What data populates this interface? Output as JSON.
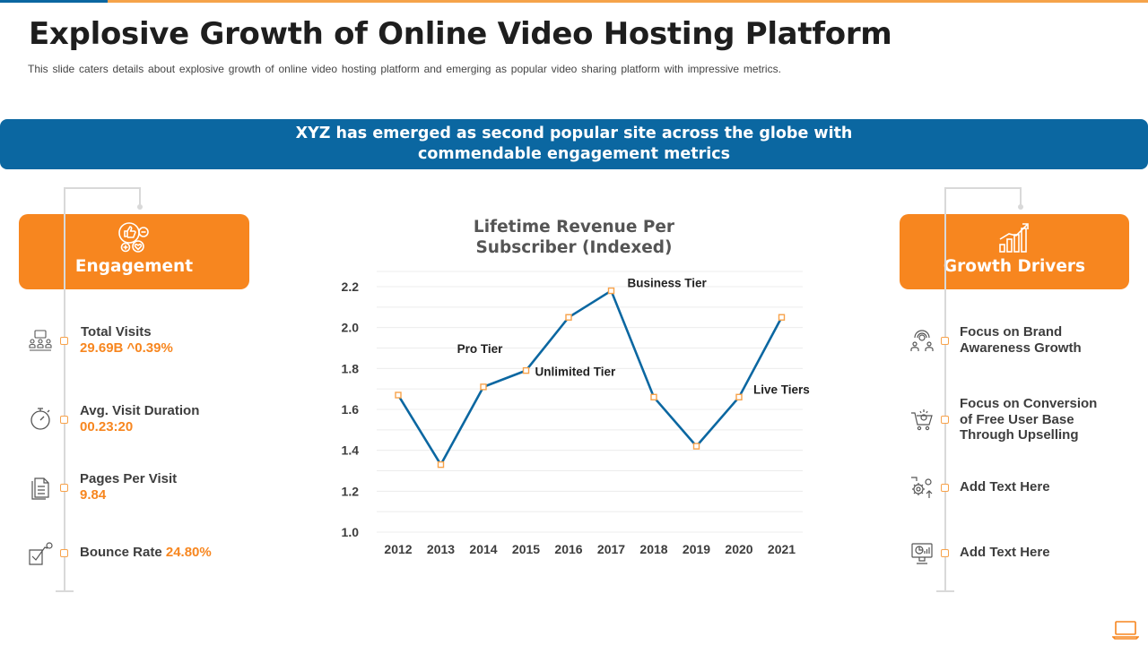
{
  "header": {
    "title": "Explosive Growth of Online Video Hosting Platform",
    "subtitle": "This slide caters details about explosive growth of online video hosting platform and emerging as popular video sharing platform with impressive metrics."
  },
  "banner": {
    "text": "XYZ has emerged as second popular site across the globe with commendable engagement metrics"
  },
  "engagement": {
    "label": "Engagement",
    "items": [
      {
        "title": "Total Visits",
        "value": "29.69B ^0.39%",
        "icon": "audience-icon"
      },
      {
        "title": "Avg. Visit Duration",
        "value": "00.23:20",
        "icon": "stopwatch-icon"
      },
      {
        "title": "Pages Per Visit",
        "value": "9.84",
        "icon": "pages-icon"
      },
      {
        "title": "Bounce Rate",
        "value": "24.80%",
        "icon": "bounce-icon"
      }
    ]
  },
  "growth_drivers": {
    "label": "Growth Drivers",
    "items": [
      {
        "title_lines": [
          "Focus on Brand",
          "Awareness Growth"
        ],
        "icon": "brand-awareness-icon"
      },
      {
        "title_lines": [
          "Focus on Conversion",
          "of Free User Base",
          "Through Upselling"
        ],
        "icon": "cart-conversion-icon"
      },
      {
        "title_lines": [
          "Add  Text Here"
        ],
        "icon": "gears-icon"
      },
      {
        "title_lines": [
          "Add  Text Here"
        ],
        "icon": "monitor-analytics-icon"
      }
    ]
  },
  "colors": {
    "accent_orange": "#f7861f",
    "banner_blue": "#0b67a1",
    "line_blue": "#0b67a1"
  },
  "chart_data": {
    "type": "line",
    "title": "Lifetime Revenue Per Subscriber (Indexed)",
    "title_lines": [
      "Lifetime Revenue Per",
      "Subscriber (Indexed)"
    ],
    "categories": [
      "2012",
      "2013",
      "2014",
      "2015",
      "2016",
      "2017",
      "2018",
      "2019",
      "2020",
      "2021"
    ],
    "series": [
      {
        "values": [
          1.67,
          1.33,
          1.71,
          1.79,
          2.05,
          2.18,
          1.66,
          1.42,
          1.66,
          2.05
        ]
      }
    ],
    "ylim": [
      1.0,
      2.2
    ],
    "yticks": [
      "1.0",
      "1.2",
      "1.4",
      "1.6",
      "1.8",
      "2.0",
      "2.2"
    ],
    "grid": true,
    "annotations": [
      {
        "text": "Pro Tier",
        "near": "2014"
      },
      {
        "text": "Unlimited Tier",
        "near": "2015"
      },
      {
        "text": "Business  Tier",
        "near": "2017"
      },
      {
        "text": "Live Tiers",
        "near": "2020"
      }
    ]
  }
}
